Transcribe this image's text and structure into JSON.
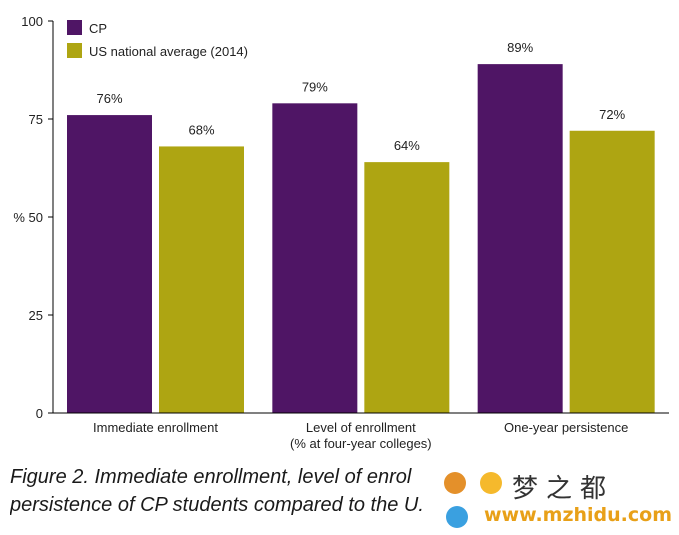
{
  "chart_data": {
    "type": "bar",
    "categories": [
      "Immediate enrollment",
      "Level of enrollment\n(% at four-year colleges)",
      "One-year persistence"
    ],
    "series": [
      {
        "name": "CP",
        "values": [
          76,
          79,
          89
        ],
        "color": "#4f1565"
      },
      {
        "name": "US national average (2014)",
        "values": [
          68,
          64,
          72
        ],
        "color": "#aea512"
      }
    ],
    "data_labels": [
      [
        "76%",
        "79%",
        "89%"
      ],
      [
        "68%",
        "64%",
        "72%"
      ]
    ],
    "ylabel": "%",
    "ylim": [
      0,
      100
    ],
    "yticks": [
      0,
      25,
      50,
      75,
      100
    ],
    "legend": "top-left",
    "grid": false
  },
  "caption": {
    "line1": "Figure 2. Immediate enrollment, level of enrol",
    "line2": "persistence of CP students compared to the U."
  },
  "watermark": {
    "text": "梦之都",
    "url": "www.mzhidu.com"
  }
}
